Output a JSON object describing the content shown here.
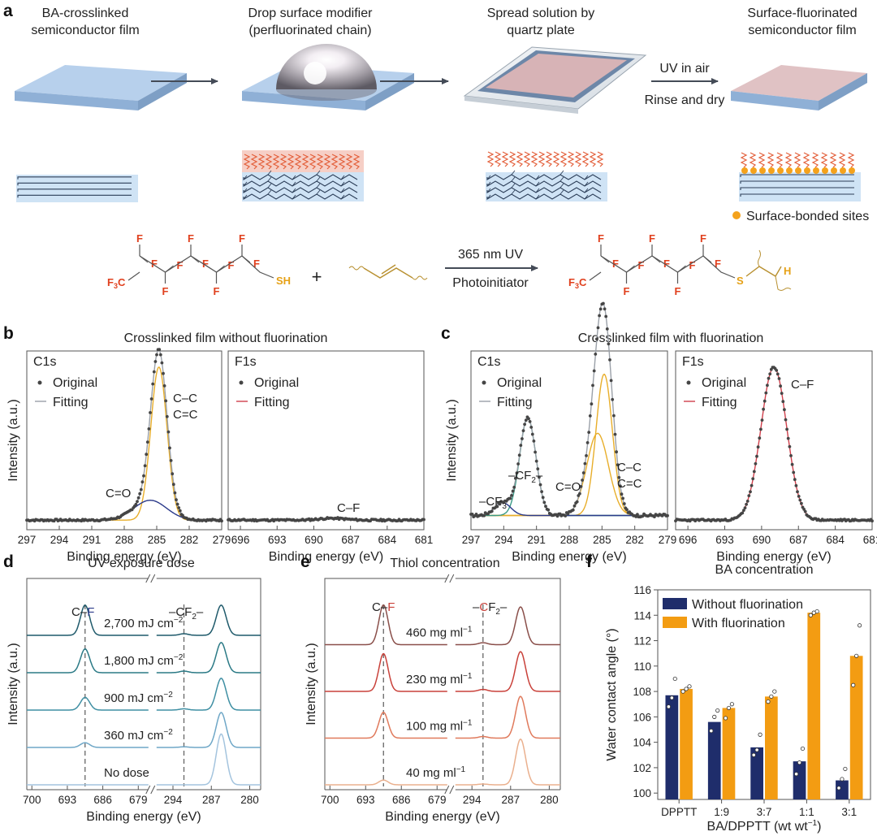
{
  "panel_a": {
    "label": "a",
    "step1": [
      "BA-crosslinked",
      "semiconductor film"
    ],
    "step2": [
      "Drop surface modifier",
      "(perfluorinated chain)"
    ],
    "step3": [
      "Spread solution by",
      "quartz plate"
    ],
    "step4": [
      "Surface-fluorinated",
      "semiconductor film"
    ],
    "arrow_top": "UV in air",
    "arrow_bottom": "Rinse and dry",
    "legend_sites": "Surface-bonded sites",
    "reaction_top": "365 nm UV",
    "reaction_bottom": "Photoinitiator",
    "atom_f": "F",
    "atom_cf3": "F3C",
    "atom_cf3_main": "F",
    "atom_cf3_sub": "3",
    "atom_cf3_c": "C",
    "atom_sh": "SH",
    "atom_s": "S",
    "atom_h": "H",
    "plus": "+"
  },
  "panel_b": {
    "label": "b",
    "title": "Crosslinked film without fluorination"
  },
  "panel_c": {
    "label": "c",
    "title": "Crosslinked film with fluorination"
  },
  "panel_d": {
    "label": "d"
  },
  "panel_e": {
    "label": "e"
  },
  "panel_f": {
    "label": "f"
  },
  "legend_text": {
    "original": "Original",
    "fitting": "Fitting"
  },
  "axis_text": {
    "binding_energy": "Binding energy (eV)",
    "intensity": "Intensity (a.u.)"
  },
  "colors": {
    "film_blue": "#a9c7e8",
    "film_edge": "#7f9fc6",
    "pink_layer": "#f6cfc6",
    "chain_red": "#e35f3a",
    "chain_dark": "#2c3e58",
    "sites": "#f4a21c",
    "fit_orange": "#e8ae2a",
    "fit_navy": "#2b3a8a",
    "fit_red": "#d0404c",
    "fit_teal": "#3a9a86",
    "fit_gray": "#9aa0a8",
    "bar_navy": "#1f2d6b",
    "bar_orange": "#f39c12"
  },
  "chart_data": [
    {
      "type": "line",
      "name": "b-C1s",
      "label": "C1s",
      "title": "Crosslinked film without fluorination",
      "xlabel": "Binding energy (eV)",
      "ylabel": "Intensity (a.u.)",
      "x_ticks": [
        297,
        294,
        291,
        288,
        285,
        282,
        279
      ],
      "xlim": [
        297,
        279
      ],
      "legend": [
        "Original",
        "Fitting"
      ],
      "peaks": [
        {
          "name": "C–C C=C",
          "label1": "C–C",
          "label2": "C=C",
          "center": 284.8,
          "height": 1.0,
          "width": 0.75
        },
        {
          "name": "C=O",
          "label": "C=O",
          "center": 285.6,
          "height": 0.13,
          "width": 1.5
        }
      ],
      "baseline": 0.02
    },
    {
      "type": "line",
      "name": "b-F1s",
      "label": "F1s",
      "xlabel": "Binding energy (eV)",
      "x_ticks": [
        696,
        693,
        690,
        687,
        684,
        681
      ],
      "xlim": [
        697,
        681
      ],
      "legend": [
        "Original",
        "Fitting"
      ],
      "peaks": [
        {
          "name": "C–F",
          "label": "C–F",
          "center": 688.5,
          "height": 0.012,
          "width": 1.1
        }
      ],
      "baseline": 0.02
    },
    {
      "type": "line",
      "name": "c-C1s",
      "label": "C1s",
      "title": "Crosslinked film with fluorination",
      "xlabel": "Binding energy (eV)",
      "ylabel": "Intensity (a.u.)",
      "x_ticks": [
        297,
        294,
        291,
        288,
        285,
        282,
        279
      ],
      "xlim": [
        297,
        279
      ],
      "legend": [
        "Original",
        "Fitting"
      ],
      "peaks": [
        {
          "name": "C–C C=C",
          "label1": "C–C",
          "label2": "C=C",
          "center": 284.8,
          "height": 0.55,
          "width": 0.75
        },
        {
          "name": "C=O",
          "label": "C=O",
          "center": 285.4,
          "height": 0.32,
          "width": 1.0
        },
        {
          "name": "–CF2–",
          "label_main": "–CF",
          "label_sub": "2",
          "label_tail": "–",
          "center": 291.8,
          "height": 0.38,
          "width": 0.75
        },
        {
          "name": "–CF3",
          "label_main": "–CF",
          "label_sub": "3",
          "center": 294.1,
          "height": 0.05,
          "width": 0.75
        }
      ],
      "baseline": 0.03
    },
    {
      "type": "line",
      "name": "c-F1s",
      "label": "F1s",
      "xlabel": "Binding energy (eV)",
      "x_ticks": [
        696,
        693,
        690,
        687,
        684,
        681
      ],
      "xlim": [
        697,
        681
      ],
      "legend": [
        "Original",
        "Fitting"
      ],
      "peaks": [
        {
          "name": "C–F",
          "label": "C–F",
          "center": 689.0,
          "height": 1.0,
          "width": 1.05
        }
      ],
      "baseline": 0.02
    },
    {
      "type": "line",
      "name": "d",
      "title": "UV exposure dose",
      "xlabel": "Binding energy (eV)",
      "ylabel": "Intensity (a.u.)",
      "x_ticks_left": [
        700,
        693,
        686,
        679
      ],
      "xlim_left": [
        701,
        677
      ],
      "x_ticks_right": [
        294,
        287,
        280
      ],
      "xlim_right": [
        297,
        278
      ],
      "markers": {
        "cf_main": "C–",
        "cf_tail": "F",
        "cf2_pre": "–",
        "cf2_main": "CF",
        "cf2_sub": "2",
        "cf2_tail": "–"
      },
      "series": [
        {
          "name": "2,700 mJ cm−2",
          "label_main": "2,700 mJ cm",
          "label_sup": "−2",
          "F1s_height": 0.95,
          "C1s_height": 0.95,
          "CF2_height": 0.05,
          "color": "#1f5a6b"
        },
        {
          "name": "1,800 mJ cm−2",
          "label_main": "1,800 mJ cm",
          "label_sup": "−2",
          "F1s_height": 0.75,
          "C1s_height": 0.95,
          "CF2_height": 0.05,
          "color": "#2b7a86"
        },
        {
          "name": "900 mJ cm−2",
          "label_main": "900 mJ cm",
          "label_sup": "−2",
          "F1s_height": 0.4,
          "C1s_height": 1.0,
          "CF2_height": 0.04,
          "color": "#3f8fa3"
        },
        {
          "name": "360 mJ cm−2",
          "label_main": "360 mJ cm",
          "label_sup": "−2",
          "F1s_height": 0.15,
          "C1s_height": 1.1,
          "CF2_height": 0.02,
          "color": "#6fa7c7"
        },
        {
          "name": "No dose",
          "label_main": "No dose",
          "label_sup": "",
          "F1s_height": 0.0,
          "C1s_height": 1.6,
          "CF2_height": 0.0,
          "color": "#a4c4de"
        }
      ]
    },
    {
      "type": "line",
      "name": "e",
      "title": "Thiol concentration",
      "xlabel": "Binding energy (eV)",
      "ylabel": "Intensity (a.u.)",
      "x_ticks_left": [
        700,
        693,
        686,
        679
      ],
      "xlim_left": [
        701,
        677
      ],
      "x_ticks_right": [
        294,
        287,
        280
      ],
      "xlim_right": [
        297,
        278
      ],
      "markers": {
        "cf_main": "C–",
        "cf_tail": "F",
        "cf2_pre": "–",
        "cf2_c": "C",
        "cf2_main": "F",
        "cf2_sub": "2",
        "cf2_tail": "–"
      },
      "series": [
        {
          "name": "460 mg ml−1",
          "label_main": "460 mg ml",
          "label_sup": "−1",
          "F1s_height": 1.0,
          "C1s_height": 0.95,
          "CF2_height": 0.05,
          "color": "#8a4f4a"
        },
        {
          "name": "230 mg ml−1",
          "label_main": "230 mg ml",
          "label_sup": "−1",
          "F1s_height": 0.95,
          "C1s_height": 1.0,
          "CF2_height": 0.05,
          "color": "#c9413a"
        },
        {
          "name": "100 mg ml−1",
          "label_main": "100 mg ml",
          "label_sup": "−1",
          "F1s_height": 0.65,
          "C1s_height": 1.05,
          "CF2_height": 0.04,
          "color": "#e07a5c"
        },
        {
          "name": "40 mg ml−1",
          "label_main": "40 mg ml",
          "label_sup": "−1",
          "F1s_height": 0.12,
          "C1s_height": 1.15,
          "CF2_height": 0.02,
          "color": "#eab08e"
        }
      ]
    },
    {
      "type": "bar",
      "name": "f",
      "title": "BA concentration",
      "xlabel_main": "BA/DPPTT (wt wt",
      "xlabel_sup": "−1",
      "xlabel_tail": ")",
      "ylabel": "Water contact angle (°)",
      "categories": [
        "DPPTT",
        "1:9",
        "3:7",
        "1:1",
        "3:1"
      ],
      "ylim": [
        99.5,
        116
      ],
      "y_ticks": [
        100,
        102,
        104,
        106,
        108,
        110,
        112,
        114,
        116
      ],
      "series": [
        {
          "name": "Without fluorination",
          "values": [
            107.7,
            105.6,
            103.6,
            102.5,
            101.0
          ],
          "points": [
            [
              106.8,
              107.5,
              109.0
            ],
            [
              104.9,
              106.0,
              106.5
            ],
            [
              103.0,
              103.4,
              104.6
            ],
            [
              101.5,
              102.4,
              103.5
            ],
            [
              100.4,
              101.1,
              101.9
            ]
          ]
        },
        {
          "name": "With fluorination",
          "values": [
            108.2,
            106.7,
            107.6,
            114.2,
            110.8
          ],
          "points": [
            [
              108.0,
              108.2,
              108.4
            ],
            [
              105.9,
              106.7,
              107.0
            ],
            [
              107.2,
              107.6,
              108.0
            ],
            [
              114.0,
              114.2,
              114.3
            ],
            [
              108.5,
              110.8,
              113.2
            ]
          ]
        }
      ]
    }
  ]
}
